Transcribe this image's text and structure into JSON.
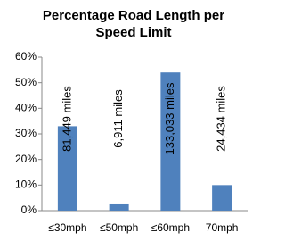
{
  "chart_data": {
    "type": "bar",
    "title": "Percentage Road Length per Speed Limit",
    "categories": [
      "≤30mph",
      "≤50mph",
      "≤60mph",
      "70mph"
    ],
    "values": [
      33,
      2.8,
      54,
      10
    ],
    "bar_labels": [
      "81,449 miles",
      "6,911 miles",
      "133,033 miles",
      "24,434 miles"
    ],
    "color": "#4f81bd",
    "ylim": [
      0,
      60
    ],
    "yticks": [
      {
        "value": 0,
        "label": "0%"
      },
      {
        "value": 10,
        "label": "10%"
      },
      {
        "value": 20,
        "label": "20%"
      },
      {
        "value": 30,
        "label": "30%"
      },
      {
        "value": 40,
        "label": "40%"
      },
      {
        "value": 50,
        "label": "50%"
      },
      {
        "value": 60,
        "label": "60%"
      }
    ],
    "grid": false
  }
}
